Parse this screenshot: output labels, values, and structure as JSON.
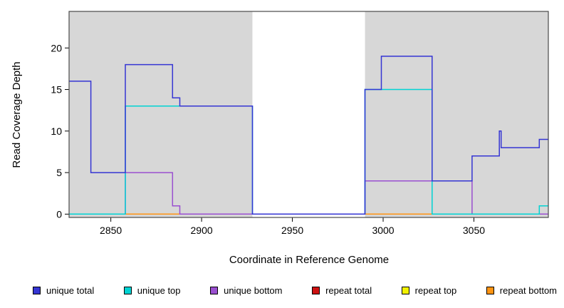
{
  "chart_data": {
    "type": "line",
    "subtype": "step",
    "title": "",
    "xlabel": "Coordinate in Reference Genome",
    "ylabel": "Read Coverage Depth",
    "xlim": [
      2827,
      3091
    ],
    "ylim": [
      -0.4,
      24.4
    ],
    "xticks": [
      2850,
      2900,
      2950,
      3000,
      3050
    ],
    "yticks": [
      0,
      5,
      10,
      15,
      20
    ],
    "grid": false,
    "legend_position": "bottom",
    "plot_background": "#d7d7d7",
    "uncovered_region": {
      "x0": 2928,
      "x1": 2990,
      "color": "#ffffff"
    },
    "frame_color": "#4a4a4a",
    "draw_order": [
      3,
      4,
      5,
      2,
      1,
      0
    ],
    "series": [
      {
        "name": "unique total",
        "color": "#3535d3",
        "points": [
          [
            2827,
            16
          ],
          [
            2839,
            16
          ],
          [
            2839,
            5
          ],
          [
            2858,
            5
          ],
          [
            2858,
            18
          ],
          [
            2884,
            18
          ],
          [
            2884,
            14
          ],
          [
            2888,
            14
          ],
          [
            2888,
            13
          ],
          [
            2928,
            13
          ],
          [
            2928,
            0
          ],
          [
            2990,
            0
          ],
          [
            2990,
            15
          ],
          [
            2999,
            15
          ],
          [
            2999,
            19
          ],
          [
            3027,
            19
          ],
          [
            3027,
            4
          ],
          [
            3049,
            4
          ],
          [
            3049,
            7
          ],
          [
            3064,
            7
          ],
          [
            3064,
            10
          ],
          [
            3065,
            10
          ],
          [
            3065,
            8
          ],
          [
            3086,
            8
          ],
          [
            3086,
            9
          ],
          [
            3091,
            9
          ]
        ]
      },
      {
        "name": "unique top",
        "color": "#00d3d3",
        "points": [
          [
            2827,
            0
          ],
          [
            2858,
            0
          ],
          [
            2858,
            13
          ],
          [
            2928,
            13
          ],
          [
            2928,
            0
          ],
          [
            2990,
            0
          ],
          [
            2990,
            15
          ],
          [
            3027,
            15
          ],
          [
            3027,
            0
          ],
          [
            3086,
            0
          ],
          [
            3086,
            1
          ],
          [
            3091,
            1
          ]
        ]
      },
      {
        "name": "unique bottom",
        "color": "#9a4fd0",
        "points": [
          [
            2827,
            0
          ],
          [
            2858,
            0
          ],
          [
            2858,
            5
          ],
          [
            2884,
            5
          ],
          [
            2884,
            1
          ],
          [
            2888,
            1
          ],
          [
            2888,
            0
          ],
          [
            2990,
            0
          ],
          [
            2990,
            4
          ],
          [
            3049,
            4
          ],
          [
            3049,
            0
          ],
          [
            3091,
            0
          ]
        ]
      },
      {
        "name": "repeat total",
        "color": "#cd1111",
        "points": [
          [
            2827,
            0
          ],
          [
            3091,
            0
          ]
        ]
      },
      {
        "name": "repeat top",
        "color": "#f2f200",
        "points": [
          [
            2827,
            0
          ],
          [
            3091,
            0
          ]
        ]
      },
      {
        "name": "repeat bottom",
        "color": "#ff9413",
        "points": [
          [
            2827,
            0
          ],
          [
            3091,
            0
          ]
        ]
      }
    ]
  }
}
